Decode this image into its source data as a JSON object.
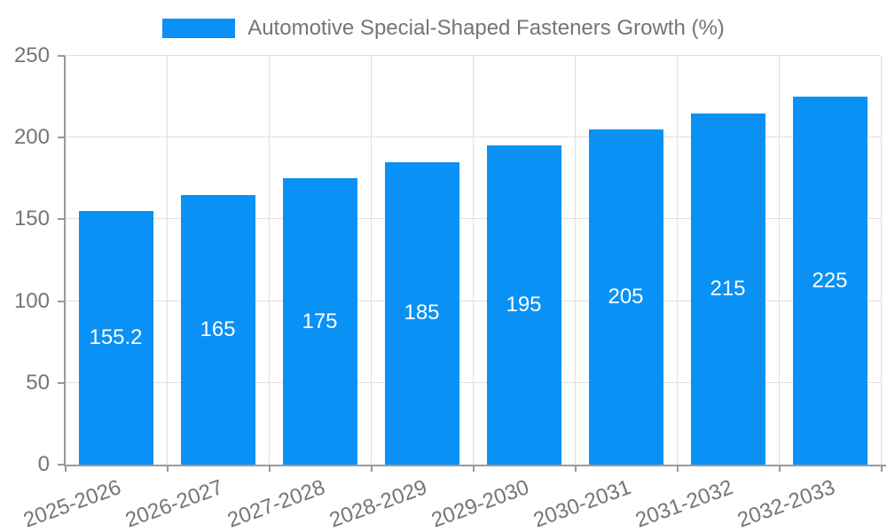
{
  "legend": {
    "label": "Automotive Special-Shaped Fasteners Growth (%)"
  },
  "chart_data": {
    "type": "bar",
    "title": "Automotive Special-Shaped Fasteners Growth (%)",
    "categories": [
      "2025-2026",
      "2026-2027",
      "2027-2028",
      "2028-2029",
      "2029-2030",
      "2030-2031",
      "2031-2032",
      "2032-2033"
    ],
    "values": [
      155.2,
      165,
      175,
      185,
      195,
      205,
      215,
      225
    ],
    "y_ticks": [
      0,
      50,
      100,
      150,
      200,
      250
    ],
    "ylim": [
      0,
      250
    ],
    "xlabel": "",
    "ylabel": "",
    "grid": true,
    "legend_position": "top-center",
    "x_label_rotation_deg": -20,
    "colors": {
      "bar": "#0A91F5",
      "bar_label": "#FFFFFF",
      "axis_line": "#999999",
      "gridline": "#E0E0E0",
      "axis_text": "#757575"
    }
  }
}
